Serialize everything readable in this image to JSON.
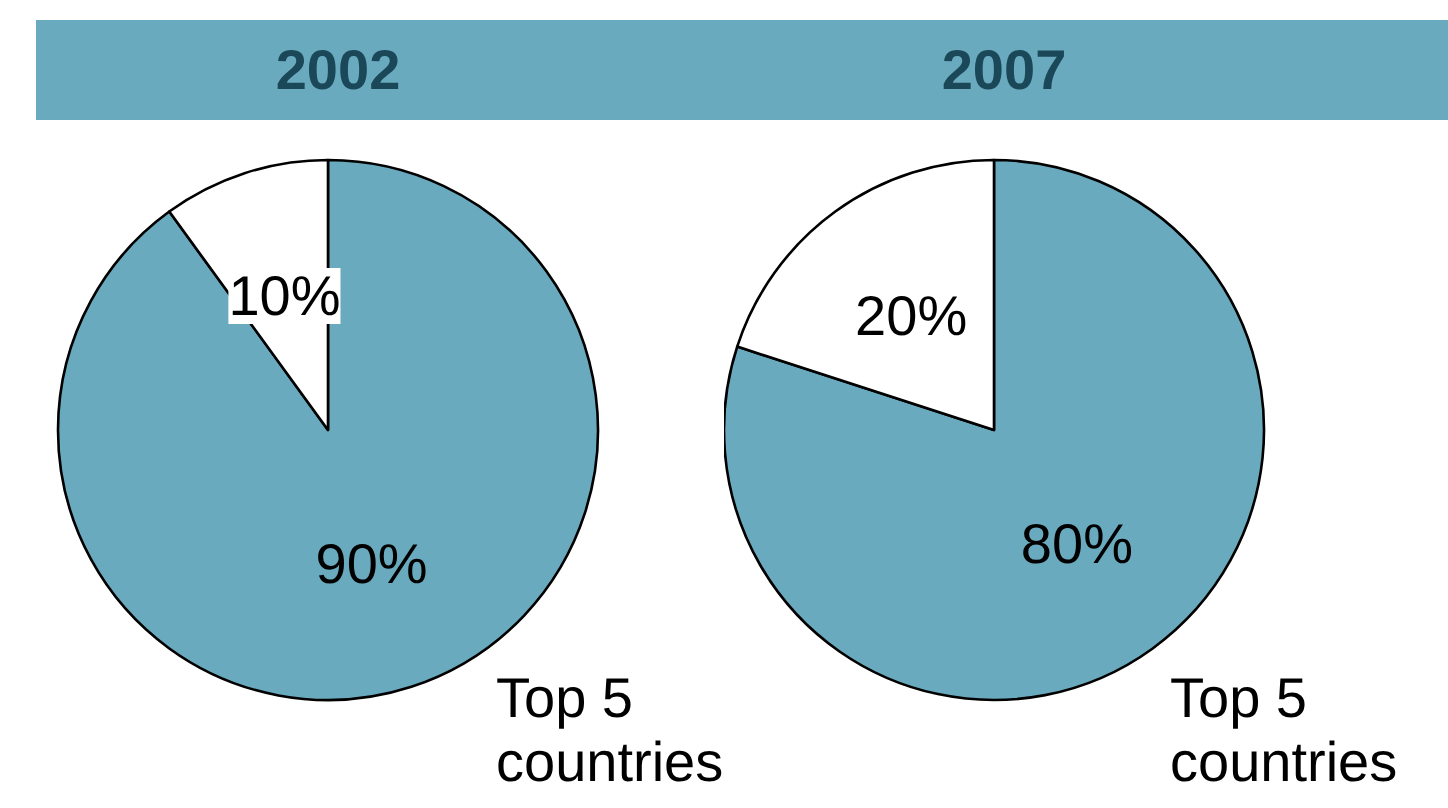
{
  "chart_data": [
    {
      "type": "pie",
      "title": "2002",
      "categories": [
        "Top 5 countries",
        null
      ],
      "values": [
        90,
        10
      ],
      "colors": [
        "#6aaabf",
        "#ffffff"
      ],
      "value_labels": [
        "90%",
        "10%"
      ]
    },
    {
      "type": "pie",
      "title": "2007",
      "categories": [
        "Top 5 countries",
        null
      ],
      "values": [
        80,
        20
      ],
      "colors": [
        "#6aaabf",
        "#ffffff"
      ],
      "value_labels": [
        "80%",
        "20%"
      ]
    }
  ]
}
